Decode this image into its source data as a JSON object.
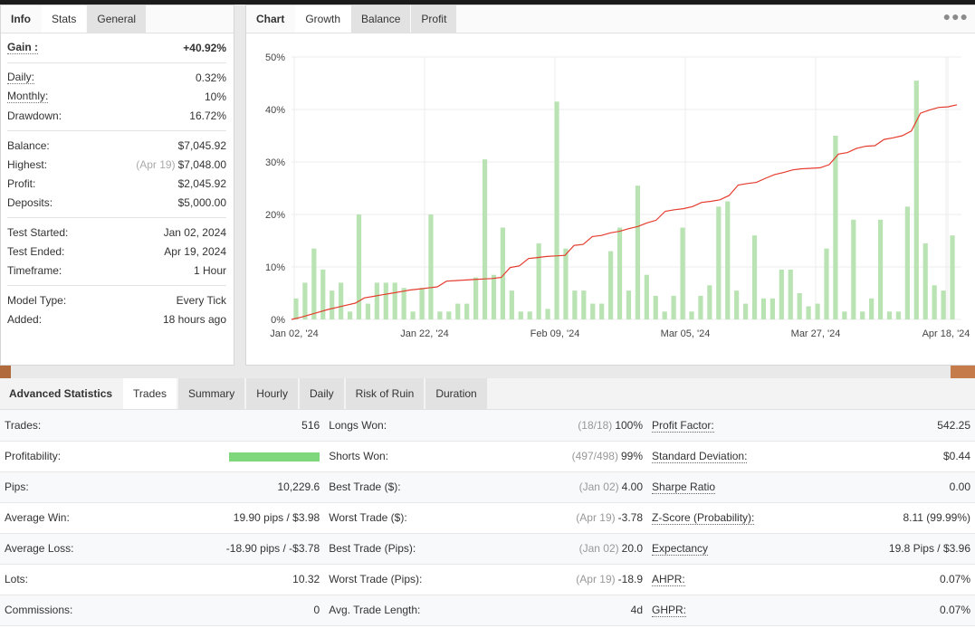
{
  "info": {
    "tabs": [
      "Info",
      "Stats",
      "General"
    ],
    "active_tab": "Stats",
    "gain": {
      "label": "Gain :",
      "value": "+40.92%"
    },
    "daily": {
      "label": "Daily:",
      "value": "0.32%"
    },
    "monthly": {
      "label": "Monthly:",
      "value": "10%"
    },
    "drawdown": {
      "label": "Drawdown:",
      "value": "16.72%"
    },
    "balance": {
      "label": "Balance:",
      "value": "$7,045.92"
    },
    "highest": {
      "label": "Highest:",
      "date": "(Apr 19)",
      "value": "$7,048.00"
    },
    "profit": {
      "label": "Profit:",
      "value": "$2,045.92"
    },
    "deposits": {
      "label": "Deposits:",
      "value": "$5,000.00"
    },
    "test_started": {
      "label": "Test Started:",
      "value": "Jan 02, 2024"
    },
    "test_ended": {
      "label": "Test Ended:",
      "value": "Apr 19, 2024"
    },
    "timeframe": {
      "label": "Timeframe:",
      "value": "1 Hour"
    },
    "model_type": {
      "label": "Model Type:",
      "value": "Every Tick"
    },
    "added": {
      "label": "Added:",
      "value": "18 hours ago"
    }
  },
  "chart_panel": {
    "tabs": [
      "Chart",
      "Growth",
      "Balance",
      "Profit"
    ],
    "active_tab": "Growth",
    "menu_icon": "more-dots-icon"
  },
  "chart_data": {
    "type": "bar+line",
    "title": "",
    "xlabel": "",
    "ylabel": "",
    "ylim": [
      0,
      50
    ],
    "y_ticks": [
      "0%",
      "10%",
      "20%",
      "30%",
      "40%",
      "50%"
    ],
    "x_tick_labels": [
      "Jan 02, '24",
      "Jan 22, '24",
      "Feb 09, '24",
      "Mar 05, '24",
      "Mar 27, '24",
      "Apr 18, '24"
    ],
    "grid": true,
    "bar_color": "#b9e3b3",
    "line_color": "#e53c2e",
    "series": [
      {
        "type": "bar",
        "values": [
          4,
          7,
          13.5,
          9.5,
          5.5,
          7,
          1.5,
          20,
          3,
          7,
          7,
          7,
          6,
          1.5,
          6,
          20,
          1.5,
          1.5,
          3,
          3,
          8,
          30.5,
          8.5,
          17.5,
          5.5,
          1.5,
          1.5,
          14.5,
          2,
          41.5,
          13.5,
          5.5,
          5.5,
          3,
          3,
          13,
          17.5,
          5.5,
          25.5,
          8.5,
          4.5,
          1.5,
          4.5,
          17.5,
          1.5,
          4.5,
          6.5,
          21.5,
          22.5,
          5.5,
          3,
          16,
          4,
          4,
          9.5,
          9.5,
          5,
          2.5,
          3,
          13.5,
          35,
          1.5,
          19,
          1.5,
          4,
          19,
          1.5,
          1.5,
          21.5,
          45.5,
          14.5,
          6.5,
          5.5,
          16
        ]
      },
      {
        "type": "line",
        "values": [
          0,
          0.4,
          0.9,
          1.4,
          1.9,
          2.3,
          2.7,
          3.1,
          4.1,
          4.4,
          4.7,
          5.0,
          5.3,
          5.6,
          5.8,
          6.0,
          6.2,
          7.3,
          7.4,
          7.5,
          7.6,
          7.7,
          7.8,
          8.0,
          9.9,
          10.2,
          11.6,
          11.8,
          12.0,
          12.1,
          12.2,
          14.1,
          14.3,
          15.8,
          16.0,
          16.5,
          16.8,
          17.3,
          17.7,
          18.4,
          18.9,
          20.6,
          20.9,
          21.1,
          21.5,
          22.3,
          22.5,
          22.8,
          23.6,
          25.6,
          25.9,
          26.1,
          26.9,
          27.6,
          28.0,
          28.5,
          28.7,
          28.8,
          28.9,
          29.5,
          31.5,
          31.8,
          32.6,
          33.0,
          33.1,
          34.3,
          34.6,
          35.0,
          35.9,
          39.3,
          39.9,
          40.4,
          40.5,
          40.9
        ]
      }
    ]
  },
  "advanced": {
    "title": "Advanced Statistics",
    "tabs": [
      "Trades",
      "Summary",
      "Hourly",
      "Daily",
      "Risk of Ruin",
      "Duration"
    ],
    "active_tab": "Trades",
    "profitability_fraction": 0.99,
    "rows": [
      {
        "l1": "Trades:",
        "v1": "516",
        "l2": "Longs Won:",
        "d2": "(18/18)",
        "v2": "100%",
        "l3": "Profit Factor:",
        "v3": "542.25"
      },
      {
        "l1": "Profitability:",
        "v1": "",
        "l2": "Shorts Won:",
        "d2": "(497/498)",
        "v2": "99%",
        "l3": "Standard Deviation:",
        "v3": "$0.44"
      },
      {
        "l1": "Pips:",
        "v1": "10,229.6",
        "l2": "Best Trade ($):",
        "d2": "(Jan 02)",
        "v2": "4.00",
        "l3": "Sharpe Ratio",
        "v3": "0.00"
      },
      {
        "l1": "Average Win:",
        "v1": "19.90 pips / $3.98",
        "l2": "Worst Trade ($):",
        "d2": "(Apr 19)",
        "v2": "-3.78",
        "l3": "Z-Score (Probability):",
        "v3": "8.11 (99.99%)"
      },
      {
        "l1": "Average Loss:",
        "v1": "-18.90 pips / -$3.78",
        "l2": "Best Trade (Pips):",
        "d2": "(Jan 02)",
        "v2": "20.0",
        "l3": "Expectancy",
        "v3": "19.8 Pips / $3.96"
      },
      {
        "l1": "Lots:",
        "v1": "10.32",
        "l2": "Worst Trade (Pips):",
        "d2": "(Apr 19)",
        "v2": "-18.9",
        "l3": "AHPR:",
        "v3": "0.07%"
      },
      {
        "l1": "Commissions:",
        "v1": "0",
        "l2": "Avg. Trade Length:",
        "d2": "",
        "v2": "4d",
        "l3": "GHPR:",
        "v3": "0.07%"
      }
    ]
  }
}
